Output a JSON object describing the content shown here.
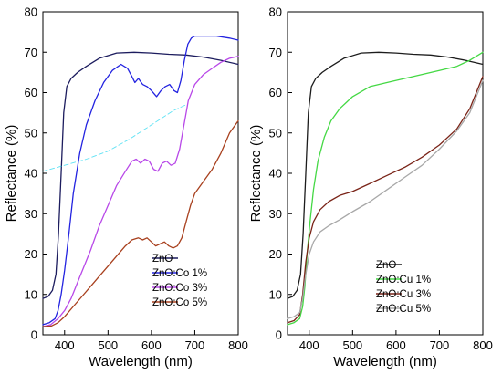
{
  "chart_data": [
    {
      "type": "line",
      "xlabel": "Wavelength (nm)",
      "ylabel": "Reflectance (%)",
      "xlim": [
        350,
        800
      ],
      "ylim": [
        0,
        80
      ],
      "xticks": [
        400,
        500,
        600,
        700,
        800
      ],
      "yticks": [
        0,
        10,
        20,
        30,
        40,
        50,
        60,
        70,
        80
      ],
      "legend_position": "bottom-right",
      "series": [
        {
          "name": "ZnO",
          "color": "#1c1c5e",
          "x": [
            350,
            362,
            372,
            380,
            386,
            392,
            398,
            405,
            415,
            430,
            450,
            480,
            520,
            560,
            600,
            640,
            680,
            720,
            760,
            800
          ],
          "y": [
            9,
            9.5,
            11,
            15,
            25,
            40,
            55,
            61.5,
            63.5,
            65,
            66.5,
            68.5,
            69.8,
            70,
            69.8,
            69.5,
            69.3,
            68.8,
            68,
            67
          ]
        },
        {
          "name": "ZnO:Co 1%",
          "color": "#2323e0",
          "x": [
            350,
            365,
            378,
            385,
            392,
            400,
            410,
            420,
            435,
            450,
            470,
            490,
            510,
            530,
            545,
            555,
            562,
            570,
            580,
            590,
            600,
            612,
            622,
            632,
            642,
            652,
            660,
            668,
            676,
            684,
            692,
            700,
            720,
            750,
            780,
            800
          ],
          "y": [
            2.5,
            3,
            4,
            6,
            10,
            16,
            25,
            35,
            45,
            52,
            58,
            62.5,
            65.5,
            67,
            66,
            64,
            62.5,
            63.5,
            62,
            61.5,
            60.5,
            59,
            60.5,
            61.5,
            62,
            60.5,
            60,
            63,
            68,
            72,
            73.5,
            74,
            74,
            74,
            73.5,
            73
          ]
        },
        {
          "name": "ZnO:Co 3%",
          "color": "#b848e8",
          "x": [
            350,
            368,
            385,
            400,
            415,
            430,
            445,
            460,
            480,
            500,
            520,
            540,
            555,
            565,
            575,
            585,
            595,
            605,
            615,
            625,
            635,
            645,
            655,
            665,
            675,
            685,
            700,
            720,
            740,
            760,
            780,
            800
          ],
          "y": [
            2,
            2.5,
            4,
            6,
            9,
            13,
            17,
            21,
            27,
            32,
            37,
            40.5,
            43,
            43.5,
            42.5,
            43.5,
            43,
            41,
            40.5,
            42.5,
            43,
            42,
            42.5,
            46,
            52,
            58,
            62,
            64.5,
            66,
            67.5,
            68.5,
            69
          ]
        },
        {
          "name": "ZnO:Co 5%",
          "color": "#a8401e",
          "x": [
            350,
            370,
            385,
            400,
            420,
            440,
            460,
            480,
            500,
            520,
            540,
            555,
            570,
            580,
            590,
            600,
            610,
            620,
            630,
            640,
            650,
            660,
            670,
            680,
            690,
            700,
            720,
            740,
            760,
            780,
            800
          ],
          "y": [
            2,
            2.2,
            3,
            4.5,
            7,
            9.5,
            12,
            14.5,
            17,
            19.5,
            22,
            23.5,
            24,
            23.5,
            24,
            23,
            22,
            22.5,
            23,
            22,
            21.5,
            22,
            24,
            28,
            32,
            35,
            38,
            41,
            45,
            50,
            53
          ]
        },
        {
          "name": "",
          "color": "#29d8f0",
          "x": [
            350,
            400,
            450,
            500,
            550,
            600,
            650,
            680
          ],
          "y": [
            40.5,
            42,
            43.5,
            45.5,
            48.5,
            52,
            55.5,
            57
          ]
        }
      ]
    },
    {
      "type": "line",
      "xlabel": "Wavelength (nm)",
      "ylabel": "Reflectance (%)",
      "xlim": [
        350,
        800
      ],
      "ylim": [
        0,
        80
      ],
      "xticks": [
        400,
        500,
        600,
        700,
        800
      ],
      "yticks": [
        0,
        10,
        20,
        30,
        40,
        50,
        60,
        70,
        80
      ],
      "legend_position": "bottom-right",
      "series": [
        {
          "name": "ZnO",
          "color": "#1c1c1c",
          "x": [
            350,
            362,
            372,
            380,
            386,
            392,
            398,
            405,
            415,
            430,
            450,
            480,
            520,
            560,
            600,
            640,
            680,
            720,
            760,
            800
          ],
          "y": [
            9,
            9.5,
            11,
            15,
            25,
            40,
            55,
            61.5,
            63.5,
            65,
            66.5,
            68.5,
            69.8,
            70,
            69.8,
            69.5,
            69.3,
            68.8,
            68,
            67
          ]
        },
        {
          "name": "ZnO:Cu 1%",
          "color": "#44d844",
          "x": [
            350,
            365,
            378,
            385,
            390,
            395,
            402,
            410,
            420,
            435,
            450,
            470,
            500,
            540,
            580,
            620,
            660,
            700,
            740,
            770,
            800
          ],
          "y": [
            2.5,
            3,
            4,
            7,
            12,
            20,
            28,
            36,
            43,
            49,
            53,
            56,
            59,
            61.5,
            62.5,
            63.5,
            64.5,
            65.5,
            66.5,
            68,
            70
          ]
        },
        {
          "name": "ZnO:Cu 3%",
          "color": "#7a2418",
          "x": [
            350,
            365,
            378,
            385,
            392,
            400,
            410,
            425,
            445,
            470,
            500,
            540,
            580,
            620,
            660,
            700,
            740,
            770,
            800
          ],
          "y": [
            3,
            3.5,
            5,
            10,
            18,
            24,
            28,
            31,
            33,
            34.5,
            35.5,
            37.5,
            39.5,
            41.5,
            44,
            47,
            51,
            56,
            64
          ]
        },
        {
          "name": "ZnO:Cu 5%",
          "color": "#a8a8a8",
          "x": [
            350,
            365,
            378,
            385,
            392,
            400,
            410,
            425,
            445,
            470,
            500,
            540,
            580,
            620,
            660,
            700,
            740,
            770,
            800
          ],
          "y": [
            4,
            4.5,
            5.5,
            9,
            15,
            20,
            23,
            25.5,
            27,
            28.5,
            30.5,
            33,
            36,
            39,
            42,
            46,
            50.5,
            55,
            63
          ]
        }
      ]
    }
  ]
}
